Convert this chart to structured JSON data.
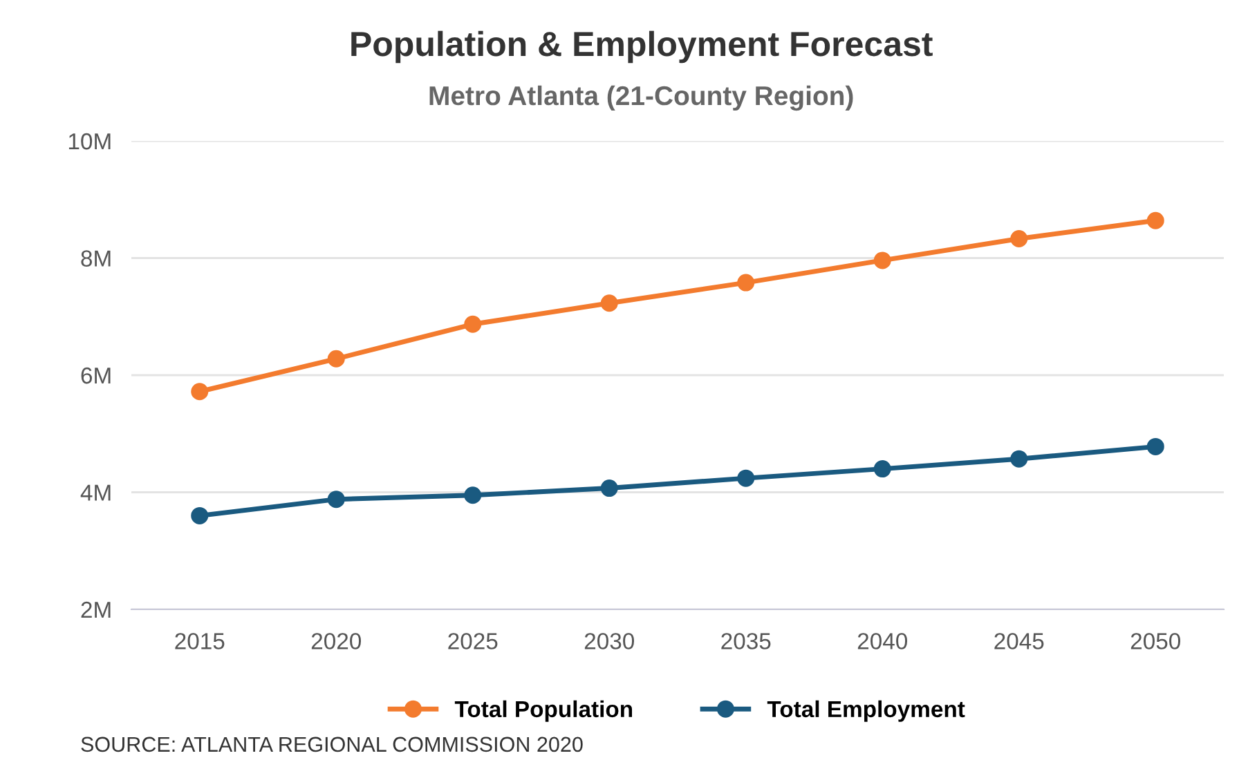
{
  "chart_data": {
    "type": "line",
    "title": "Population & Employment Forecast",
    "subtitle": "Metro Atlanta (21-County Region)",
    "categories": [
      "2015",
      "2020",
      "2025",
      "2030",
      "2035",
      "2040",
      "2045",
      "2050"
    ],
    "series": [
      {
        "name": "Total Population",
        "color": "#f37b2e",
        "values": [
          5.72,
          6.28,
          6.87,
          7.23,
          7.58,
          7.96,
          8.33,
          8.64
        ]
      },
      {
        "name": "Total Employment",
        "color": "#1a5a80",
        "values": [
          3.6,
          3.88,
          3.95,
          4.07,
          4.24,
          4.4,
          4.57,
          4.78
        ]
      }
    ],
    "ylim": [
      2,
      10
    ],
    "yticks": [
      {
        "value": 2,
        "label": "2M"
      },
      {
        "value": 4,
        "label": "4M"
      },
      {
        "value": 6,
        "label": "6M"
      },
      {
        "value": 8,
        "label": "8M"
      },
      {
        "value": 10,
        "label": "10M"
      }
    ],
    "grid": "y",
    "legend": "bottom",
    "marker": "circle",
    "line_style": "solid",
    "annotations": [
      "SOURCE: ATLANTA REGIONAL COMMISSION 2020"
    ]
  }
}
